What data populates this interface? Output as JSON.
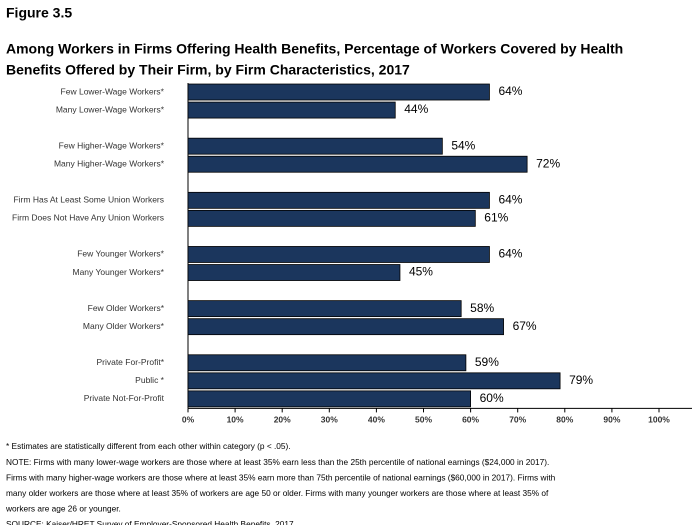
{
  "chart_data": {
    "type": "bar",
    "orientation": "horizontal",
    "figure_label": "Figure 3.5",
    "title_lines": [
      "Among Workers in Firms Offering Health Benefits, Percentage of Workers Covered by Health",
      "Benefits Offered by Their Firm, by Firm Characteristics, 2017"
    ],
    "categories": [
      "Few Lower-Wage Workers*",
      "Many Lower-Wage Workers*",
      null,
      "Few Higher-Wage Workers*",
      "Many Higher-Wage Workers*",
      null,
      "Firm Has At Least Some Union Workers",
      "Firm Does Not Have Any Union Workers",
      null,
      "Few Younger Workers*",
      "Many Younger Workers*",
      null,
      "Few Older Workers*",
      "Many Older Workers*",
      null,
      "Private For-Profit*",
      "Public *",
      "Private Not-For-Profit"
    ],
    "values": [
      64,
      44,
      null,
      54,
      72,
      null,
      64,
      61,
      null,
      64,
      45,
      null,
      58,
      67,
      null,
      59,
      79,
      60
    ],
    "value_labels": [
      "64%",
      "44%",
      null,
      "54%",
      "72%",
      null,
      "64%",
      "61%",
      null,
      "64%",
      "45%",
      null,
      "58%",
      "67%",
      null,
      "59%",
      "79%",
      "60%"
    ],
    "color": "#1b365d",
    "xlim": [
      0,
      100
    ],
    "xticks": [
      {
        "value": 0,
        "label": "0%"
      },
      {
        "value": 10,
        "label": "10%"
      },
      {
        "value": 20,
        "label": "20%"
      },
      {
        "value": 30,
        "label": "30%"
      },
      {
        "value": 40,
        "label": "40%"
      },
      {
        "value": 50,
        "label": "50%"
      },
      {
        "value": 60,
        "label": "60%"
      },
      {
        "value": 70,
        "label": "70%"
      },
      {
        "value": 80,
        "label": "80%"
      },
      {
        "value": 90,
        "label": "90%"
      },
      {
        "value": 100,
        "label": "100%"
      }
    ],
    "notes": [
      "* Estimates are statistically different from each other within category (p < .05).",
      "NOTE: Firms with many lower-wage workers are those where at least 35% earn less than the 25th percentile of national earnings ($24,000 in 2017).",
      "Firms with many higher-wage workers are those where at least 35% earn more than 75th percentile of national earnings ($60,000 in 2017). Firms with",
      "many older workers are those where at least 35% of workers are age 50 or older. Firms with many younger workers are those where at least 35% of",
      "workers are age 26 or younger.",
      "SOURCE: Kaiser/HRET Survey of Employer-Sponsored Health Benefits, 2017"
    ]
  }
}
